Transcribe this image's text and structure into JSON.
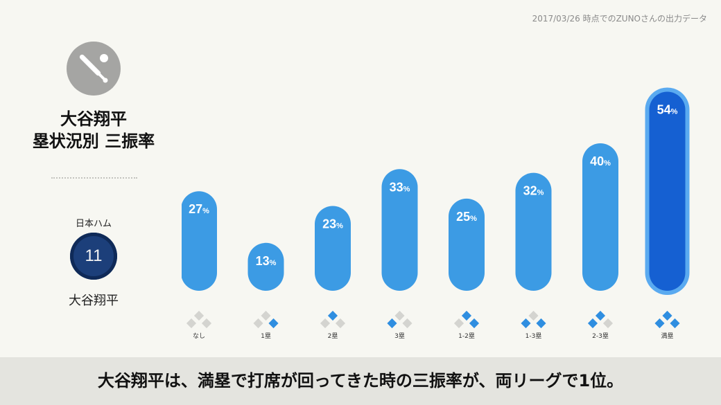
{
  "source_note": "2017/03/26 時点でのZUNOさんの出力データ",
  "left_panel": {
    "badge_icon": "baseball-bat-icon",
    "title_line1": "大谷翔平",
    "title_line2": "塁状況別 三振率",
    "team": "日本ハム",
    "uniform_number": "11",
    "player": "大谷翔平"
  },
  "colors": {
    "background": "#f7f7f2",
    "bar": "#3c9be4",
    "bar_highlight": "#1560d2",
    "bar_highlight_outline": "#5aaaf0",
    "base_on": "#2f8ee0",
    "base_off": "#d4d4d0",
    "badge": "#1c3f7a"
  },
  "chart_data": {
    "type": "bar",
    "title": "",
    "xlabel": "",
    "ylabel": "",
    "ylim": [
      0,
      60
    ],
    "categories": [
      "なし",
      "1塁",
      "2塁",
      "3塁",
      "1-2塁",
      "1-3塁",
      "2-3塁",
      "満塁"
    ],
    "values": [
      27,
      13,
      23,
      33,
      25,
      32,
      40,
      54
    ],
    "value_suffix": "%",
    "highlight_index": 7,
    "bases_occupied": [
      {
        "first": false,
        "second": false,
        "third": false
      },
      {
        "first": true,
        "second": false,
        "third": false
      },
      {
        "first": false,
        "second": true,
        "third": false
      },
      {
        "first": false,
        "second": false,
        "third": true
      },
      {
        "first": true,
        "second": true,
        "third": false
      },
      {
        "first": true,
        "second": false,
        "third": true
      },
      {
        "first": false,
        "second": true,
        "third": true
      },
      {
        "first": true,
        "second": true,
        "third": true
      }
    ],
    "grid": false,
    "legend": "none"
  },
  "bottom_caption": "大谷翔平は、満塁で打席が回ってきた時の三振率が、両リーグで1位。"
}
